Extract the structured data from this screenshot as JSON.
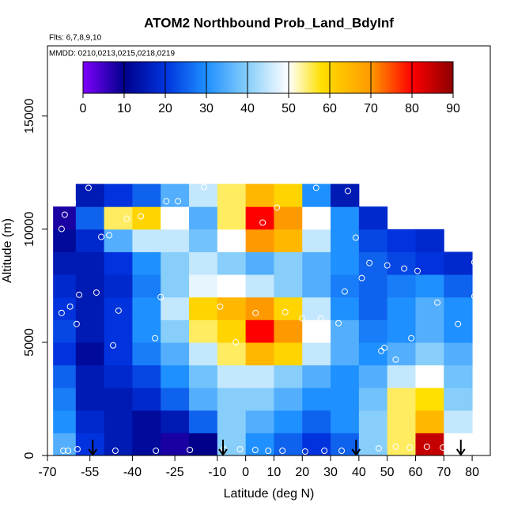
{
  "chart_data": {
    "type": "heatmap",
    "title": "ATOM2 Northbound Prob_Land_BdyInf",
    "subtitle": "Flts: 6,7,8,9,10",
    "annotation": "MMDD: 0210,0213,0215,0218,0219",
    "x_label": "Latitude (deg N)",
    "y_label": "Altitude (m)",
    "xlim": [
      -70,
      86.4
    ],
    "ylim": [
      0,
      18100
    ],
    "xticks": [
      -70,
      -55,
      -40,
      -25,
      -10,
      0,
      10,
      20,
      30,
      40,
      50,
      60,
      70,
      80
    ],
    "yticks": [
      0,
      5000,
      10000,
      15000
    ],
    "x_edges": [
      -68,
      -60,
      -50,
      -40,
      -30,
      -20,
      -10,
      0,
      10,
      20,
      30,
      40,
      50,
      60,
      70,
      80
    ],
    "y_edges": [
      0,
      1000,
      2000,
      3000,
      4000,
      5000,
      6000,
      7000,
      8000,
      9000,
      10000,
      11000,
      12000
    ],
    "values": [
      [
        35,
        20,
        15,
        12,
        8,
        10,
        40,
        30,
        25,
        20,
        25,
        40,
        55,
        85,
        50
      ],
      [
        30,
        18,
        15,
        12,
        15,
        25,
        40,
        35,
        30,
        25,
        30,
        40,
        55,
        65,
        45
      ],
      [
        28,
        15,
        15,
        18,
        25,
        35,
        40,
        40,
        35,
        30,
        30,
        38,
        55,
        58,
        40
      ],
      [
        25,
        15,
        18,
        22,
        30,
        38,
        45,
        45,
        40,
        35,
        30,
        35,
        45,
        50,
        38
      ],
      [
        20,
        12,
        20,
        28,
        35,
        45,
        55,
        65,
        60,
        45,
        35,
        30,
        35,
        40,
        35
      ],
      [
        22,
        15,
        20,
        30,
        40,
        55,
        60,
        80,
        70,
        50,
        35,
        28,
        30,
        35,
        30
      ],
      [
        20,
        15,
        20,
        30,
        45,
        60,
        65,
        70,
        60,
        45,
        30,
        25,
        30,
        35,
        30
      ],
      [
        18,
        15,
        18,
        28,
        40,
        48,
        50,
        45,
        40,
        35,
        28,
        25,
        28,
        30,
        25
      ],
      [
        15,
        15,
        20,
        30,
        40,
        45,
        40,
        35,
        40,
        35,
        30,
        25,
        22,
        20,
        18
      ],
      [
        12,
        18,
        35,
        45,
        45,
        38,
        50,
        70,
        65,
        45,
        30,
        22,
        20,
        18,
        null
      ],
      [
        8,
        25,
        55,
        60,
        50,
        35,
        55,
        80,
        70,
        50,
        30,
        18,
        null,
        null,
        null
      ],
      [
        null,
        15,
        20,
        25,
        35,
        45,
        55,
        65,
        60,
        30,
        15,
        null,
        null,
        null,
        null
      ]
    ],
    "clim": [
      0,
      90
    ],
    "colorbar_ticks": [
      0,
      10,
      20,
      30,
      40,
      50,
      60,
      70,
      80,
      90
    ],
    "colorscale": [
      [
        0,
        "#8000ff"
      ],
      [
        10,
        "#00008b"
      ],
      [
        20,
        "#0033dd"
      ],
      [
        30,
        "#1e90ff"
      ],
      [
        40,
        "#87cefa"
      ],
      [
        50,
        "#ffffff"
      ],
      [
        58,
        "#ffe000"
      ],
      [
        70,
        "#ff9900"
      ],
      [
        80,
        "#ff0000"
      ],
      [
        90,
        "#8b0000"
      ]
    ],
    "points": {
      "x": [
        -64.4,
        -62.7,
        -59.4,
        -46,
        -31.7,
        -19.7,
        -7.7,
        -2,
        3.4,
        8,
        13,
        21,
        27.8,
        33.9,
        47,
        53,
        58,
        64,
        69.7,
        -65,
        -62,
        -59.7,
        -58.8,
        -52.7,
        -44.9,
        -46.8,
        -32,
        -30,
        -9,
        -3.5,
        3.5,
        14,
        20,
        26.6,
        32.8,
        35,
        47.9,
        49,
        53,
        58.5,
        67.7,
        75,
        80.8,
        -65,
        -63.9,
        -61,
        -55.5,
        -51,
        -48.2,
        -42,
        -37,
        -28,
        -23.9,
        -14.7,
        -4.6,
        6,
        11,
        24.9,
        36.1,
        38.9,
        43.7,
        50,
        56,
        60.7,
        76,
        80.8,
        41
      ],
      "y": [
        210,
        210,
        280,
        210,
        210,
        245,
        280,
        280,
        245,
        210,
        210,
        175,
        210,
        210,
        315,
        385,
        350,
        385,
        350,
        6300,
        6580,
        5810,
        7100,
        7200,
        6400,
        4865,
        5180,
        7000,
        6580,
        5000,
        6300,
        6335,
        6055,
        6055,
        5845,
        7245,
        4620,
        4760,
        4235,
        5180,
        6755,
        5810,
        7035,
        10010,
        10640,
        11200,
        11830,
        9660,
        9730,
        10465,
        10570,
        11235,
        11235,
        11865,
        9590,
        10290,
        10955,
        11830,
        11690,
        9625,
        8505,
        8400,
        8260,
        8155,
        9310,
        8540,
        7840
      ],
      "color": "#ffffff"
    },
    "arrows": [
      -54,
      -8,
      39,
      76
    ],
    "arrow_color": "#000000"
  }
}
